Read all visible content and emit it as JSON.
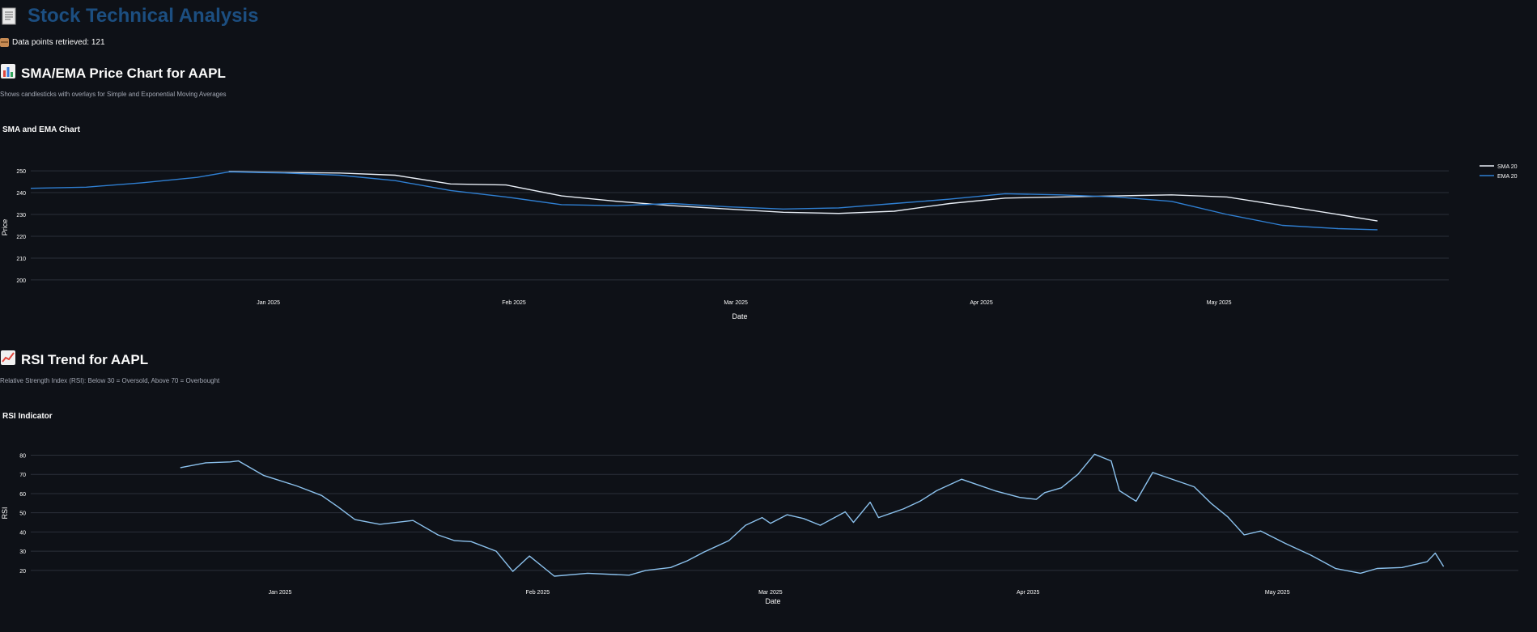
{
  "app": {
    "title": "Stock Technical Analysis",
    "title_icon": "receipt-icon",
    "data_points_text": "Data points retrieved: 121",
    "data_points_icon": "package-icon"
  },
  "sections": [
    {
      "header": "SMA/EMA Price Chart for AAPL",
      "header_icon": "bar-chart-icon",
      "caption": "Shows candlesticks with overlays for Simple and Exponential Moving Averages"
    },
    {
      "header": "RSI Trend for AAPL",
      "header_icon": "trend-up-chart-icon",
      "caption": "Relative Strength Index (RSI): Below 30 = Oversold, Above 70 = Overbought"
    }
  ],
  "colors": {
    "background": "#0e1117",
    "title": "#1c4e80",
    "sma": "#e8eef6",
    "ema": "#2f7fd2",
    "rsi": "#8cc2ee",
    "grid": "#2b303a"
  },
  "chart_data": [
    {
      "type": "line",
      "title": "SMA and EMA Chart",
      "xlabel": "Date",
      "ylabel": "Price",
      "x_ticks": [
        "Jan 2025",
        "Feb 2025",
        "Mar 2025",
        "Apr 2025",
        "May 2025"
      ],
      "x_range": [
        "2024-12-02",
        "2025-05-30"
      ],
      "y_ticks": [
        200,
        210,
        220,
        230,
        240,
        250
      ],
      "ylim": [
        197,
        253
      ],
      "grid": true,
      "legend_position": "top-right",
      "series": [
        {
          "name": "SMA 20",
          "color": "#e8eef6",
          "points": [
            [
              "2024-12-27",
              249.7
            ],
            [
              "2025-01-03",
              249.2
            ],
            [
              "2025-01-10",
              249.0
            ],
            [
              "2025-01-17",
              248.0
            ],
            [
              "2025-01-24",
              244.0
            ],
            [
              "2025-01-31",
              243.5
            ],
            [
              "2025-02-07",
              238.5
            ],
            [
              "2025-02-14",
              236.0
            ],
            [
              "2025-02-21",
              234.0
            ],
            [
              "2025-02-28",
              232.5
            ],
            [
              "2025-03-07",
              231.0
            ],
            [
              "2025-03-14",
              230.5
            ],
            [
              "2025-03-21",
              231.5
            ],
            [
              "2025-03-28",
              235.0
            ],
            [
              "2025-04-04",
              237.5
            ],
            [
              "2025-04-11",
              238.0
            ],
            [
              "2025-04-18",
              238.5
            ],
            [
              "2025-04-25",
              239.0
            ],
            [
              "2025-05-02",
              238.0
            ],
            [
              "2025-05-09",
              234.0
            ],
            [
              "2025-05-16",
              230.0
            ],
            [
              "2025-05-21",
              227.0
            ]
          ]
        },
        {
          "name": "EMA 20",
          "color": "#2f7fd2",
          "points": [
            [
              "2024-12-02",
              242.0
            ],
            [
              "2024-12-09",
              242.5
            ],
            [
              "2024-12-16",
              244.5
            ],
            [
              "2024-12-23",
              247.0
            ],
            [
              "2024-12-27",
              249.5
            ],
            [
              "2025-01-03",
              249.0
            ],
            [
              "2025-01-10",
              248.0
            ],
            [
              "2025-01-17",
              245.5
            ],
            [
              "2025-01-24",
              241.0
            ],
            [
              "2025-01-31",
              238.0
            ],
            [
              "2025-02-07",
              234.5
            ],
            [
              "2025-02-14",
              234.0
            ],
            [
              "2025-02-21",
              235.0
            ],
            [
              "2025-02-28",
              233.5
            ],
            [
              "2025-03-07",
              232.5
            ],
            [
              "2025-03-14",
              233.0
            ],
            [
              "2025-03-21",
              235.0
            ],
            [
              "2025-03-28",
              237.0
            ],
            [
              "2025-04-04",
              239.5
            ],
            [
              "2025-04-11",
              239.0
            ],
            [
              "2025-04-18",
              238.0
            ],
            [
              "2025-04-25",
              236.0
            ],
            [
              "2025-05-02",
              230.0
            ],
            [
              "2025-05-09",
              225.0
            ],
            [
              "2025-05-16",
              223.5
            ],
            [
              "2025-05-21",
              223.0
            ]
          ]
        }
      ]
    },
    {
      "type": "line",
      "title": "RSI Indicator",
      "xlabel": "Date",
      "ylabel": "RSI",
      "x_ticks": [
        "Jan 2025",
        "Feb 2025",
        "Mar 2025",
        "Apr 2025",
        "May 2025"
      ],
      "x_range": [
        "2024-12-02",
        "2025-05-30"
      ],
      "y_ticks": [
        20,
        30,
        40,
        50,
        60,
        70,
        80
      ],
      "ylim": [
        17,
        84
      ],
      "grid": true,
      "series": [
        {
          "name": "RSI",
          "color": "#8cc2ee",
          "points": [
            [
              "2024-12-20",
              73.5
            ],
            [
              "2024-12-23",
              76.0
            ],
            [
              "2024-12-26",
              76.5
            ],
            [
              "2024-12-27",
              77.0
            ],
            [
              "2024-12-30",
              69.5
            ],
            [
              "2025-01-03",
              64.0
            ],
            [
              "2025-01-06",
              59.0
            ],
            [
              "2025-01-08",
              53.0
            ],
            [
              "2025-01-10",
              46.5
            ],
            [
              "2025-01-13",
              44.0
            ],
            [
              "2025-01-17",
              46.0
            ],
            [
              "2025-01-20",
              38.5
            ],
            [
              "2025-01-22",
              35.5
            ],
            [
              "2025-01-24",
              35.0
            ],
            [
              "2025-01-27",
              30.0
            ],
            [
              "2025-01-29",
              19.5
            ],
            [
              "2025-01-31",
              27.5
            ],
            [
              "2025-02-03",
              17.0
            ],
            [
              "2025-02-07",
              18.5
            ],
            [
              "2025-02-12",
              17.5
            ],
            [
              "2025-02-14",
              20.0
            ],
            [
              "2025-02-17",
              21.5
            ],
            [
              "2025-02-19",
              25.0
            ],
            [
              "2025-02-21",
              29.5
            ],
            [
              "2025-02-24",
              35.5
            ],
            [
              "2025-02-26",
              43.5
            ],
            [
              "2025-02-28",
              47.5
            ],
            [
              "2025-03-01",
              44.5
            ],
            [
              "2025-03-03",
              49.0
            ],
            [
              "2025-03-05",
              47.0
            ],
            [
              "2025-03-07",
              43.5
            ],
            [
              "2025-03-10",
              50.5
            ],
            [
              "2025-03-11",
              45.0
            ],
            [
              "2025-03-13",
              55.5
            ],
            [
              "2025-03-14",
              47.5
            ],
            [
              "2025-03-17",
              52.0
            ],
            [
              "2025-03-19",
              56.0
            ],
            [
              "2025-03-21",
              61.5
            ],
            [
              "2025-03-24",
              67.5
            ],
            [
              "2025-03-26",
              64.5
            ],
            [
              "2025-03-28",
              61.5
            ],
            [
              "2025-03-31",
              58.0
            ],
            [
              "2025-04-02",
              57.0
            ],
            [
              "2025-04-03",
              60.5
            ],
            [
              "2025-04-05",
              63.0
            ],
            [
              "2025-04-07",
              70.0
            ],
            [
              "2025-04-09",
              80.5
            ],
            [
              "2025-04-11",
              77.0
            ],
            [
              "2025-04-12",
              61.5
            ],
            [
              "2025-04-14",
              56.0
            ],
            [
              "2025-04-16",
              71.0
            ],
            [
              "2025-04-18",
              68.0
            ],
            [
              "2025-04-21",
              63.5
            ],
            [
              "2025-04-23",
              55.0
            ],
            [
              "2025-04-25",
              48.0
            ],
            [
              "2025-04-27",
              38.5
            ],
            [
              "2025-04-29",
              40.5
            ],
            [
              "2025-05-02",
              34.0
            ],
            [
              "2025-05-05",
              28.0
            ],
            [
              "2025-05-08",
              21.0
            ],
            [
              "2025-05-11",
              18.5
            ],
            [
              "2025-05-13",
              21.0
            ],
            [
              "2025-05-16",
              21.5
            ],
            [
              "2025-05-19",
              24.5
            ],
            [
              "2025-05-20",
              29.0
            ],
            [
              "2025-05-21",
              22.0
            ]
          ]
        }
      ]
    }
  ]
}
